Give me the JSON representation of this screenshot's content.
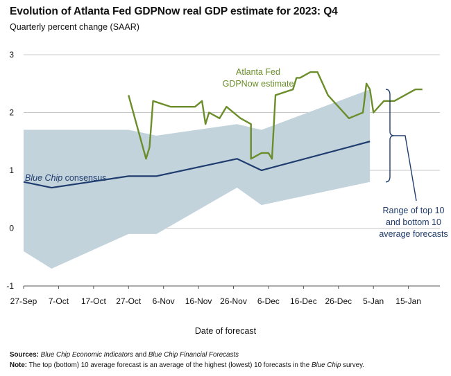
{
  "title": "Evolution of Atlanta Fed GDPNow real GDP estimate for 2023: Q4",
  "subtitle": "Quarterly percent change (SAAR)",
  "notes": {
    "sources_label": "Sources:",
    "sources_a": "Blue Chip Economic Indicators",
    "sources_and": " and ",
    "sources_b": "Blue Chip Financial Forecasts",
    "note_label": "Note:",
    "note_text": " The top (bottom) 10 average forecast is an average of the highest (lowest) 10 forecasts in the ",
    "note_italic": "Blue Chip",
    "note_end": " survey."
  },
  "colors": {
    "gdpnow": "#6b8e2a",
    "bluechip": "#1f3c6e",
    "band": "#c2d3dc",
    "grid": "#c8c8c8",
    "annotation": "#1f3c6e"
  },
  "chart_data": {
    "type": "line",
    "xlabel": "Date of forecast",
    "ylabel": "",
    "ylim": [
      -1,
      3
    ],
    "yticks": [
      -1,
      0,
      1,
      2,
      3
    ],
    "xlim": [
      "2023-09-27",
      "2024-01-24"
    ],
    "xticks": [
      "27-Sep",
      "7-Oct",
      "17-Oct",
      "27-Oct",
      "6-Nov",
      "16-Nov",
      "26-Nov",
      "6-Dec",
      "16-Dec",
      "26-Dec",
      "5-Jan",
      "15-Jan"
    ],
    "grid": "horizontal",
    "series": [
      {
        "name": "Atlanta Fed GDPNow estimate",
        "label_line1": "Atlanta Fed",
        "label_line2": "GDPNow estimate",
        "points": [
          [
            "2023-10-27",
            2.3
          ],
          [
            "2023-11-01",
            1.2
          ],
          [
            "2023-11-02",
            1.4
          ],
          [
            "2023-11-03",
            2.2
          ],
          [
            "2023-11-08",
            2.1
          ],
          [
            "2023-11-15",
            2.1
          ],
          [
            "2023-11-17",
            2.2
          ],
          [
            "2023-11-18",
            1.8
          ],
          [
            "2023-11-19",
            2.0
          ],
          [
            "2023-11-22",
            1.9
          ],
          [
            "2023-11-24",
            2.1
          ],
          [
            "2023-11-28",
            1.9
          ],
          [
            "2023-12-01",
            1.8
          ],
          [
            "2023-12-01",
            1.2
          ],
          [
            "2023-12-04",
            1.3
          ],
          [
            "2023-12-06",
            1.3
          ],
          [
            "2023-12-07",
            1.2
          ],
          [
            "2023-12-08",
            2.3
          ],
          [
            "2023-12-13",
            2.4
          ],
          [
            "2023-12-14",
            2.6
          ],
          [
            "2023-12-15",
            2.6
          ],
          [
            "2023-12-18",
            2.7
          ],
          [
            "2023-12-20",
            2.7
          ],
          [
            "2023-12-23",
            2.3
          ],
          [
            "2023-12-29",
            1.9
          ],
          [
            "2024-01-02",
            2.0
          ],
          [
            "2024-01-03",
            2.5
          ],
          [
            "2024-01-04",
            2.4
          ],
          [
            "2024-01-05",
            2.0
          ],
          [
            "2024-01-08",
            2.2
          ],
          [
            "2024-01-11",
            2.2
          ],
          [
            "2024-01-17",
            2.4
          ],
          [
            "2024-01-19",
            2.4
          ]
        ]
      },
      {
        "name": "Blue Chip consensus",
        "label_italic": "Blue Chip",
        "label_rest": " consensus",
        "points": [
          [
            "2023-09-27",
            0.8
          ],
          [
            "2023-10-05",
            0.7
          ],
          [
            "2023-10-27",
            0.9
          ],
          [
            "2023-11-04",
            0.9
          ],
          [
            "2023-11-27",
            1.2
          ],
          [
            "2023-12-04",
            1.0
          ],
          [
            "2024-01-04",
            1.5
          ]
        ]
      }
    ],
    "band": {
      "name": "Range of top 10 and bottom 10 average forecasts",
      "label_lines": [
        "Range of top 10",
        "and bottom 10",
        "average forecasts"
      ],
      "top": [
        [
          "2023-09-27",
          1.7
        ],
        [
          "2023-10-27",
          1.7
        ],
        [
          "2023-11-04",
          1.6
        ],
        [
          "2023-11-27",
          1.8
        ],
        [
          "2023-12-04",
          1.7
        ],
        [
          "2024-01-04",
          2.4
        ]
      ],
      "bottom": [
        [
          "2023-09-27",
          -0.4
        ],
        [
          "2023-10-05",
          -0.7
        ],
        [
          "2023-10-27",
          -0.1
        ],
        [
          "2023-11-04",
          -0.1
        ],
        [
          "2023-11-27",
          0.7
        ],
        [
          "2023-12-04",
          0.4
        ],
        [
          "2024-01-04",
          0.8
        ]
      ]
    }
  }
}
